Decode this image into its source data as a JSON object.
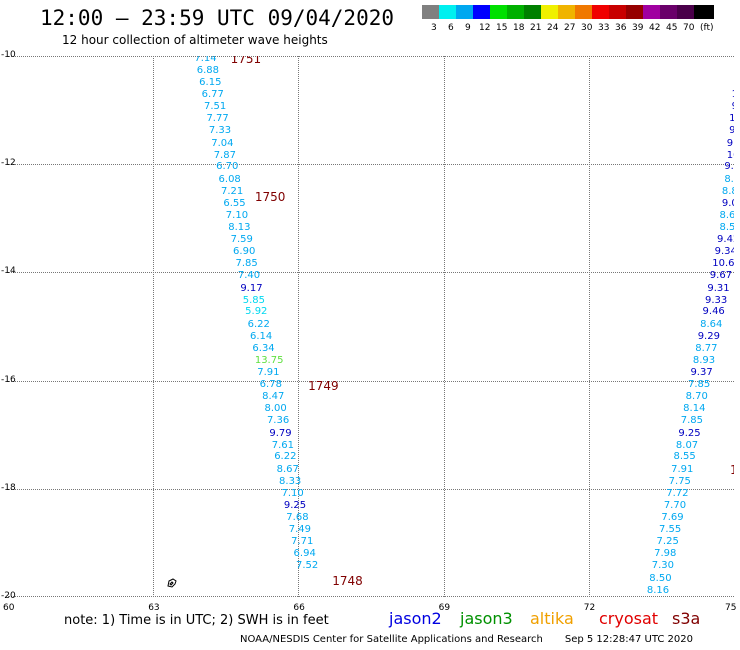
{
  "header": {
    "title": "12:00 — 23:59 UTC 09/04/2020",
    "subtitle": "12 hour collection of altimeter wave heights"
  },
  "legend": {
    "colors": [
      "#808080",
      "#00f0f0",
      "#00a8f0",
      "#0000ff",
      "#00e000",
      "#00b000",
      "#008000",
      "#f0f000",
      "#f0b400",
      "#f07800",
      "#f00000",
      "#c80000",
      "#960000",
      "#a000a0",
      "#6a006a",
      "#4a004a",
      "#000000"
    ],
    "labels": [
      "3",
      "6",
      "9",
      "12",
      "15",
      "18",
      "21",
      "24",
      "27",
      "30",
      "33",
      "36",
      "39",
      "42",
      "45",
      "70",
      "(ft)"
    ]
  },
  "chart_data": {
    "type": "scatter",
    "title": "12:00 — 23:59 UTC 09/04/2020",
    "subtitle": "12 hour collection of altimeter wave heights",
    "xlabel": "",
    "ylabel": "",
    "xlim": [
      60,
      75
    ],
    "ylim": [
      -20,
      -10
    ],
    "x_ticks": [
      "60",
      "63",
      "66",
      "69",
      "72",
      "75"
    ],
    "y_ticks": [
      "-10",
      "-12",
      "-14",
      "-16",
      "-18",
      "-20"
    ],
    "grid": true,
    "units": "ft",
    "swh_colors": {
      "jason2": "#0000c0",
      "s3a_light": "#00a8f0",
      "s3a_mid": "#00a8f0",
      "green": "#00e000"
    },
    "passes": [
      {
        "label": "1751",
        "lon": 64.6,
        "lat": -10.05
      },
      {
        "label": "1750",
        "lon": 65.1,
        "lat": -12.6
      },
      {
        "label": "1749",
        "lon": 66.2,
        "lat": -16.1
      },
      {
        "label": "1748",
        "lon": 66.7,
        "lat": -19.7
      }
    ],
    "series": [
      {
        "name": "west track",
        "points": [
          {
            "lon": 63.85,
            "lat": -10.05,
            "swh": "7.14",
            "color": "#00a8f0"
          },
          {
            "lon": 63.9,
            "lat": -10.27,
            "swh": "6.88",
            "color": "#00a8f0"
          },
          {
            "lon": 63.95,
            "lat": -10.5,
            "swh": "6.15",
            "color": "#00a8f0"
          },
          {
            "lon": 64.0,
            "lat": -10.72,
            "swh": "6.77",
            "color": "#00a8f0"
          },
          {
            "lon": 64.05,
            "lat": -10.95,
            "swh": "7.51",
            "color": "#00a8f0"
          },
          {
            "lon": 64.1,
            "lat": -11.17,
            "swh": "7.77",
            "color": "#00a8f0"
          },
          {
            "lon": 64.15,
            "lat": -11.39,
            "swh": "7.33",
            "color": "#00a8f0"
          },
          {
            "lon": 64.2,
            "lat": -11.62,
            "swh": "7.04",
            "color": "#00a8f0"
          },
          {
            "lon": 64.25,
            "lat": -11.84,
            "swh": "7.87",
            "color": "#00a8f0"
          },
          {
            "lon": 64.3,
            "lat": -12.06,
            "swh": "6.70",
            "color": "#00a8f0"
          },
          {
            "lon": 64.35,
            "lat": -12.29,
            "swh": "6.08",
            "color": "#00a8f0"
          },
          {
            "lon": 64.4,
            "lat": -12.51,
            "swh": "7.21",
            "color": "#00a8f0"
          },
          {
            "lon": 64.45,
            "lat": -12.73,
            "swh": "6.55",
            "color": "#00a8f0"
          },
          {
            "lon": 64.5,
            "lat": -12.96,
            "swh": "7.10",
            "color": "#00a8f0"
          },
          {
            "lon": 64.55,
            "lat": -13.18,
            "swh": "8.13",
            "color": "#00a8f0"
          },
          {
            "lon": 64.6,
            "lat": -13.4,
            "swh": "7.59",
            "color": "#00a8f0"
          },
          {
            "lon": 64.65,
            "lat": -13.63,
            "swh": "6.90",
            "color": "#00a8f0"
          },
          {
            "lon": 64.7,
            "lat": -13.85,
            "swh": "7.85",
            "color": "#00a8f0"
          },
          {
            "lon": 64.75,
            "lat": -14.07,
            "swh": "7.40",
            "color": "#00a8f0"
          },
          {
            "lon": 64.8,
            "lat": -14.3,
            "swh": "9.17",
            "color": "#0000c0"
          },
          {
            "lon": 64.85,
            "lat": -14.52,
            "swh": "5.85",
            "color": "#00d8f0"
          },
          {
            "lon": 64.9,
            "lat": -14.74,
            "swh": "5.92",
            "color": "#00d8f0"
          },
          {
            "lon": 64.95,
            "lat": -14.97,
            "swh": "6.22",
            "color": "#00a8f0"
          },
          {
            "lon": 65.0,
            "lat": -15.19,
            "swh": "6.14",
            "color": "#00a8f0"
          },
          {
            "lon": 65.05,
            "lat": -15.41,
            "swh": "6.34",
            "color": "#00a8f0"
          },
          {
            "lon": 65.1,
            "lat": -15.64,
            "swh": "13.75",
            "color": "#60e040"
          },
          {
            "lon": 65.15,
            "lat": -15.86,
            "swh": "7.91",
            "color": "#00a8f0"
          },
          {
            "lon": 65.2,
            "lat": -16.08,
            "swh": "6.78",
            "color": "#00a8f0"
          },
          {
            "lon": 65.25,
            "lat": -16.31,
            "swh": "8.47",
            "color": "#00a8f0"
          },
          {
            "lon": 65.3,
            "lat": -16.53,
            "swh": "8.00",
            "color": "#00a8f0"
          },
          {
            "lon": 65.35,
            "lat": -16.75,
            "swh": "7.36",
            "color": "#00a8f0"
          },
          {
            "lon": 65.4,
            "lat": -16.98,
            "swh": "9.79",
            "color": "#0000c0"
          },
          {
            "lon": 65.45,
            "lat": -17.2,
            "swh": "7.61",
            "color": "#00a8f0"
          },
          {
            "lon": 65.5,
            "lat": -17.42,
            "swh": "6.22",
            "color": "#00a8f0"
          },
          {
            "lon": 65.55,
            "lat": -17.65,
            "swh": "8.67",
            "color": "#00a8f0"
          },
          {
            "lon": 65.6,
            "lat": -17.87,
            "swh": "8.33",
            "color": "#00a8f0"
          },
          {
            "lon": 65.65,
            "lat": -18.09,
            "swh": "7.10",
            "color": "#00a8f0"
          },
          {
            "lon": 65.7,
            "lat": -18.32,
            "swh": "9.25",
            "color": "#0000c0"
          },
          {
            "lon": 65.75,
            "lat": -18.54,
            "swh": "7.68",
            "color": "#00a8f0"
          },
          {
            "lon": 65.8,
            "lat": -18.76,
            "swh": "7.49",
            "color": "#00a8f0"
          },
          {
            "lon": 65.85,
            "lat": -18.99,
            "swh": "7.71",
            "color": "#00a8f0"
          },
          {
            "lon": 65.9,
            "lat": -19.21,
            "swh": "6.94",
            "color": "#00a8f0"
          },
          {
            "lon": 65.95,
            "lat": -19.43,
            "swh": "7.52",
            "color": "#00a8f0"
          }
        ]
      },
      {
        "name": "east track",
        "points": [
          {
            "lon": 75.0,
            "lat": -10.05,
            "swh": "1",
            "color": "#0000c0"
          },
          {
            "lon": 75.0,
            "lat": -10.27,
            "swh": "10",
            "color": "#0000c0"
          },
          {
            "lon": 75.0,
            "lat": -10.5,
            "swh": "10",
            "color": "#0000c0"
          },
          {
            "lon": 74.95,
            "lat": -10.72,
            "swh": "10",
            "color": "#0000c0"
          },
          {
            "lon": 74.95,
            "lat": -10.95,
            "swh": "9",
            "color": "#0000c0"
          },
          {
            "lon": 74.9,
            "lat": -11.17,
            "swh": "10",
            "color": "#0000c0"
          },
          {
            "lon": 74.9,
            "lat": -11.39,
            "swh": "9.",
            "color": "#0000c0"
          },
          {
            "lon": 74.85,
            "lat": -11.62,
            "swh": "9.",
            "color": "#0000c0"
          },
          {
            "lon": 74.85,
            "lat": -11.84,
            "swh": "10.",
            "color": "#0000c0"
          },
          {
            "lon": 74.8,
            "lat": -12.06,
            "swh": "9.7",
            "color": "#0000c0"
          },
          {
            "lon": 74.8,
            "lat": -12.29,
            "swh": "8.8",
            "color": "#00a8f0"
          },
          {
            "lon": 74.75,
            "lat": -12.51,
            "swh": "8.8",
            "color": "#00a8f0"
          },
          {
            "lon": 74.75,
            "lat": -12.73,
            "swh": "9.0",
            "color": "#0000c0"
          },
          {
            "lon": 74.7,
            "lat": -12.96,
            "swh": "8.6",
            "color": "#00a8f0"
          },
          {
            "lon": 74.7,
            "lat": -13.18,
            "swh": "8.5",
            "color": "#00a8f0"
          },
          {
            "lon": 74.65,
            "lat": -13.4,
            "swh": "9.42",
            "color": "#0000c0"
          },
          {
            "lon": 74.6,
            "lat": -13.63,
            "swh": "9.34",
            "color": "#0000c0"
          },
          {
            "lon": 74.55,
            "lat": -13.85,
            "swh": "10.68",
            "color": "#0000c0"
          },
          {
            "lon": 74.5,
            "lat": -14.07,
            "swh": "9.67",
            "color": "#0000c0"
          },
          {
            "lon": 74.45,
            "lat": -14.3,
            "swh": "9.31",
            "color": "#0000c0"
          },
          {
            "lon": 74.4,
            "lat": -14.52,
            "swh": "9.33",
            "color": "#0000c0"
          },
          {
            "lon": 74.35,
            "lat": -14.74,
            "swh": "9.46",
            "color": "#0000c0"
          },
          {
            "lon": 74.3,
            "lat": -14.97,
            "swh": "8.64",
            "color": "#00a8f0"
          },
          {
            "lon": 74.25,
            "lat": -15.19,
            "swh": "9.29",
            "color": "#0000c0"
          },
          {
            "lon": 74.2,
            "lat": -15.41,
            "swh": "8.77",
            "color": "#00a8f0"
          },
          {
            "lon": 74.15,
            "lat": -15.64,
            "swh": "8.93",
            "color": "#00a8f0"
          },
          {
            "lon": 74.1,
            "lat": -15.86,
            "swh": "9.37",
            "color": "#0000c0"
          },
          {
            "lon": 74.05,
            "lat": -16.08,
            "swh": "7.85",
            "color": "#00a8f0"
          },
          {
            "lon": 74.0,
            "lat": -16.31,
            "swh": "8.70",
            "color": "#00a8f0"
          },
          {
            "lon": 73.95,
            "lat": -16.53,
            "swh": "8.14",
            "color": "#00a8f0"
          },
          {
            "lon": 73.9,
            "lat": -16.75,
            "swh": "7.85",
            "color": "#00a8f0"
          },
          {
            "lon": 73.85,
            "lat": -16.98,
            "swh": "9.25",
            "color": "#0000c0"
          },
          {
            "lon": 73.8,
            "lat": -17.2,
            "swh": "8.07",
            "color": "#00a8f0"
          },
          {
            "lon": 73.75,
            "lat": -17.42,
            "swh": "8.55",
            "color": "#00a8f0"
          },
          {
            "lon": 73.7,
            "lat": -17.65,
            "swh": "7.91",
            "color": "#00a8f0"
          },
          {
            "lon": 73.65,
            "lat": -17.87,
            "swh": "7.75",
            "color": "#00a8f0"
          },
          {
            "lon": 73.6,
            "lat": -18.09,
            "swh": "7.72",
            "color": "#00a8f0"
          },
          {
            "lon": 73.55,
            "lat": -18.32,
            "swh": "7.70",
            "color": "#00a8f0"
          },
          {
            "lon": 73.5,
            "lat": -18.54,
            "swh": "7.69",
            "color": "#00a8f0"
          },
          {
            "lon": 73.45,
            "lat": -18.76,
            "swh": "7.55",
            "color": "#00a8f0"
          },
          {
            "lon": 73.4,
            "lat": -18.99,
            "swh": "7.25",
            "color": "#00a8f0"
          },
          {
            "lon": 73.35,
            "lat": -19.21,
            "swh": "7.98",
            "color": "#00a8f0"
          },
          {
            "lon": 73.3,
            "lat": -19.43,
            "swh": "7.30",
            "color": "#00a8f0"
          },
          {
            "lon": 73.25,
            "lat": -19.66,
            "swh": "8.50",
            "color": "#00a8f0"
          },
          {
            "lon": 73.2,
            "lat": -19.88,
            "swh": "8.16",
            "color": "#00a8f0"
          }
        ]
      }
    ],
    "edge_marks": [
      {
        "label": "1",
        "lon": 75.0,
        "lat": -17.65,
        "color": "#800000"
      }
    ]
  },
  "note": "note:  1) Time is in UTC;  2) SWH is in feet",
  "satellites": [
    {
      "name": "jason2",
      "color": "#0000e0"
    },
    {
      "name": "jason3",
      "color": "#009000"
    },
    {
      "name": "altika",
      "color": "#f0a000"
    },
    {
      "name": "cryosat",
      "color": "#e00000"
    },
    {
      "name": "s3a",
      "color": "#800000"
    }
  ],
  "footer": {
    "credit": "NOAA/NESDIS Center for Satellite Applications and Research",
    "timestamp": "Sep  5 12:28:47 UTC 2020"
  }
}
